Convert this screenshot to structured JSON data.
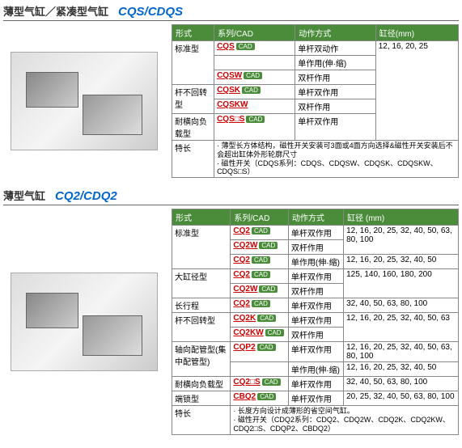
{
  "sec1": {
    "title_cn": "薄型气缸／紧凑型气缸",
    "title_en": "CQS/CDQS",
    "headers": [
      "形式",
      "系列/CAD",
      "动作方式",
      "缸径(mm)"
    ],
    "bore": "12, 16, 20, 25",
    "rows": [
      {
        "type": "标准型",
        "rs": 3,
        "series": "CQS",
        "cad": true,
        "action": "单杆双动作"
      },
      {
        "series": "",
        "cad": false,
        "action": "单作用(伸·缩)"
      },
      {
        "series": "CQSW",
        "cad": true,
        "action": "双杆作用"
      },
      {
        "type": "杆不回转型",
        "rs": 2,
        "series": "CQSK",
        "cad": true,
        "action": "单杆双作用"
      },
      {
        "series": "CQSKW",
        "cad": false,
        "action": "双杆作用"
      },
      {
        "type": "耐横向负载型",
        "rs": 1,
        "series": "CQS□S",
        "cad": true,
        "action": "单杆双作用"
      }
    ],
    "feature_label": "特长",
    "feature": "· 薄型长方体结构，磁性开关安装可3面或4面方向选择&磁性开关安装后不会超出缸体外形轮廓尺寸\n· 磁性开关（CDQS系列：CDQS、CDQSW、CDQSK、CDQSKW、CDQS□S）"
  },
  "sec2": {
    "title_cn": "薄型气缸",
    "title_en": "CQ2/CDQ2",
    "headers": [
      "形式",
      "系列/CAD",
      "动作方式",
      "缸径 (mm)"
    ],
    "rows": [
      {
        "type": "标准型",
        "rs": 3,
        "series": "CQ2",
        "cad": true,
        "action": "单杆双作用",
        "bore": "12, 16, 20, 25, 32, 40, 50, 63, 80, 100"
      },
      {
        "series": "CQ2W",
        "cad": true,
        "action": "双杆作用",
        "bore": ""
      },
      {
        "series": "CQ2",
        "cad": true,
        "action": "单作用(伸·缩)",
        "bore": "12, 16, 20, 25, 32, 40, 50"
      },
      {
        "type": "大缸径型",
        "rs": 2,
        "series": "CQ2",
        "cad": true,
        "action": "单杆双作用",
        "bore": "125, 140, 160, 180, 200"
      },
      {
        "series": "CQ2W",
        "cad": true,
        "action": "双杆作用",
        "bore": ""
      },
      {
        "type": "长行程",
        "rs": 1,
        "series": "CQ2",
        "cad": true,
        "action": "单杆双作用",
        "bore": "32, 40, 50, 63, 80, 100"
      },
      {
        "type": "杆不回转型",
        "rs": 2,
        "series": "CQ2K",
        "cad": true,
        "action": "单杆双作用",
        "bore": "12, 16, 20, 25, 32, 40, 50, 63"
      },
      {
        "series": "CQ2KW",
        "cad": true,
        "action": "双杆作用",
        "bore": ""
      },
      {
        "type": "轴向配管型(集中配管型)",
        "rs": 2,
        "series": "CQP2",
        "cad": true,
        "action": "单杆双作用",
        "bore": "12, 16, 20, 25, 32, 40, 50, 63, 80, 100"
      },
      {
        "series": "",
        "cad": false,
        "action": "单作用(伸·缩)",
        "bore": "12, 16, 20, 25, 32, 40, 50"
      },
      {
        "type": "耐横向负载型",
        "rs": 1,
        "series": "CQ2□S",
        "cad": true,
        "action": "单杆双作用",
        "bore": "32, 40, 50, 63, 80, 100"
      },
      {
        "type": "端锁型",
        "rs": 1,
        "series": "CBQ2",
        "cad": true,
        "action": "单杆双作用",
        "bore": "20, 25, 32, 40, 50, 63, 80, 100"
      }
    ],
    "feature_label": "特长",
    "feature": "· 长度方向设计成薄形的省空间气缸。\n· 磁性开关（CDQ2系列：CDQ2、CDQ2W、CDQ2K、CDQ2KW、CDQ2□S、CDQP2、CBDQ2）"
  }
}
